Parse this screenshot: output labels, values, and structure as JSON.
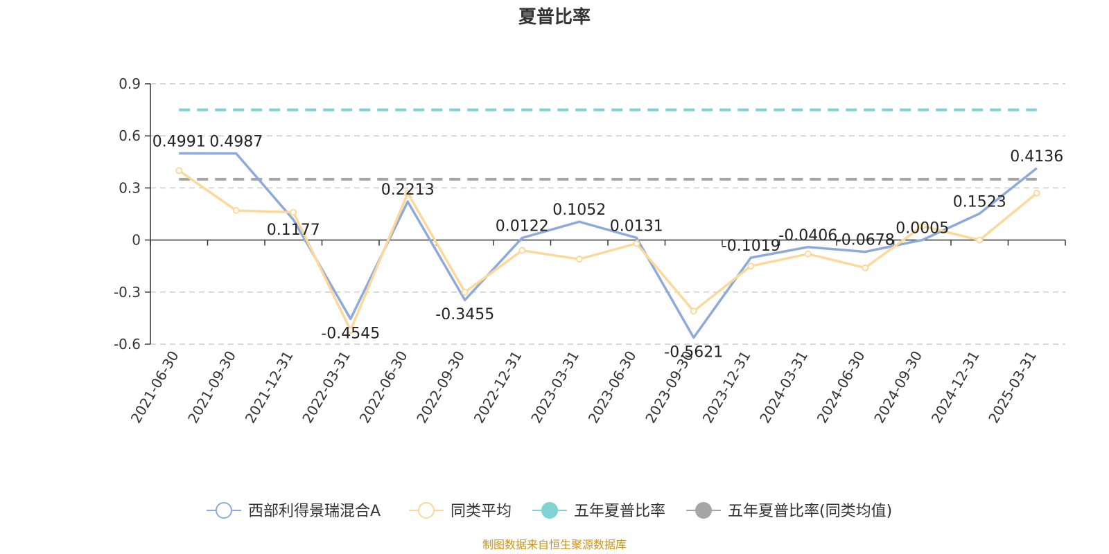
{
  "chart_data": {
    "type": "line",
    "title": "夏普比率",
    "categories": [
      "2021-06-30",
      "2021-09-30",
      "2021-12-31",
      "2022-03-31",
      "2022-06-30",
      "2022-09-30",
      "2022-12-31",
      "2023-03-31",
      "2023-06-30",
      "2023-09-30",
      "2023-12-31",
      "2024-03-31",
      "2024-06-30",
      "2024-09-30",
      "2024-12-31",
      "2025-03-31"
    ],
    "yticks": [
      "0.9",
      "0.6",
      "0.3",
      "0",
      "-0.3",
      "-0.6"
    ],
    "ylim": [
      -0.6,
      0.9
    ],
    "grid": true,
    "legend_position": "bottom",
    "series": [
      {
        "name": "西部利得景瑞混合A",
        "color": "#8eaadb",
        "values": [
          0.4991,
          0.4987,
          0.1177,
          -0.4545,
          0.2213,
          -0.3455,
          0.0122,
          0.1052,
          0.0131,
          -0.5621,
          -0.1019,
          -0.0406,
          -0.0678,
          0.0005,
          0.1523,
          0.4136
        ],
        "labels": [
          "0.4991",
          "0.4987",
          "0.1177",
          "-0.4545",
          "0.2213",
          "-0.3455",
          "0.0122",
          "0.1052",
          "0.0131",
          "-0.5621",
          "-0.1019",
          "-0.0406",
          "-0.0678",
          "0.0005",
          "0.1523",
          "0.4136"
        ]
      },
      {
        "name": "同类平均",
        "color": "#fcd99b",
        "values": [
          0.4,
          0.17,
          0.16,
          -0.52,
          0.27,
          -0.3,
          -0.06,
          -0.11,
          -0.02,
          -0.41,
          -0.15,
          -0.08,
          -0.16,
          0.08,
          0.0,
          0.27
        ]
      }
    ],
    "reference_lines": [
      {
        "name": "五年夏普比率",
        "color": "#7fd3d3",
        "value": 0.75
      },
      {
        "name": "五年夏普比率(同类均值)",
        "color": "#a6a6a6",
        "value": 0.35
      }
    ]
  },
  "source": "制图数据来自恒生聚源数据库"
}
